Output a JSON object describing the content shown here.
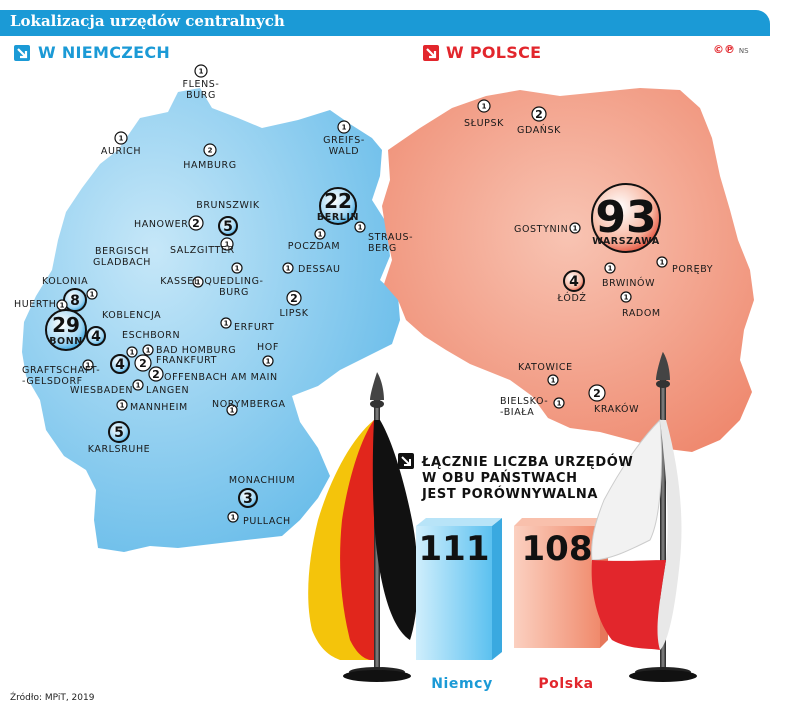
{
  "header": {
    "title": "Lokalizacja urzędów centralnych"
  },
  "sections": {
    "germany": "w Niemczech",
    "poland": "w Polsce"
  },
  "copyright": {
    "mark": "©℗",
    "author": "NS"
  },
  "source": "Źródło: MPiT, 2019",
  "summary": {
    "text_lines": [
      "Łącznie liczba urzędów",
      "w obu państwach",
      "jest porównywalna"
    ]
  },
  "totals": [
    {
      "country": "Niemcy",
      "value": "111",
      "color": "#1b9ad6"
    },
    {
      "country": "Polska",
      "value": "108",
      "color": "#e2262c"
    }
  ],
  "colors": {
    "germany_fill": "#8fcdf0",
    "poland_fill": "#f3a38a",
    "accent_blue": "#1b9ad6",
    "accent_red": "#e2262c"
  },
  "cities_germany": [
    {
      "id": "flensburg",
      "label_lines": [
        "Flens-",
        "burg"
      ],
      "count": "1"
    },
    {
      "id": "aurich",
      "label_lines": [
        "Aurich"
      ],
      "count": "1"
    },
    {
      "id": "hamburg",
      "label_lines": [
        "Hamburg"
      ],
      "count": "2"
    },
    {
      "id": "greifswald",
      "label_lines": [
        "Greifs-",
        "wald"
      ],
      "count": "1"
    },
    {
      "id": "brunszwik",
      "label_lines": [
        "Brunszwik"
      ],
      "count": "5"
    },
    {
      "id": "hanower",
      "label_lines": [
        "Hanower"
      ],
      "count": "2"
    },
    {
      "id": "salzgitter",
      "label_lines": [
        "Salzgitter"
      ],
      "count": "1"
    },
    {
      "id": "berlin",
      "label_lines": [
        "Berlin"
      ],
      "count": "22"
    },
    {
      "id": "poczdam",
      "label_lines": [
        "Poczdam"
      ],
      "count": "1"
    },
    {
      "id": "strausberg",
      "label_lines": [
        "Straus-",
        "berg"
      ],
      "count": "1"
    },
    {
      "id": "dessau",
      "label_lines": [
        "Dessau"
      ],
      "count": "1"
    },
    {
      "id": "quedlinburg",
      "label_lines": [
        "Quedling-",
        "burg"
      ],
      "count": "1"
    },
    {
      "id": "kassel",
      "label_lines": [
        "Kassel"
      ],
      "count": "1"
    },
    {
      "id": "bergisch-gladbach",
      "label_lines": [
        "Bergisch",
        "Gladbach"
      ],
      "count": "1"
    },
    {
      "id": "kolonia",
      "label_lines": [
        "Kolonia"
      ],
      "count": "8"
    },
    {
      "id": "huerth",
      "label_lines": [
        "Huerth"
      ],
      "count": "1"
    },
    {
      "id": "koblencja",
      "label_lines": [
        "Koblencja"
      ],
      "count": "4"
    },
    {
      "id": "bonn",
      "label_lines": [
        "Bonn"
      ],
      "count": "29"
    },
    {
      "id": "lipsk",
      "label_lines": [
        "Lipsk"
      ],
      "count": "2"
    },
    {
      "id": "erfurt",
      "label_lines": [
        "Erfurt"
      ],
      "count": "1"
    },
    {
      "id": "eschborn",
      "label_lines": [
        "Eschborn"
      ],
      "count": "1"
    },
    {
      "id": "bad-homburg",
      "label_lines": [
        "Bad Homburg"
      ],
      "count": "1"
    },
    {
      "id": "frankfurt",
      "label_lines": [
        "Frankfurt"
      ],
      "count": "2"
    },
    {
      "id": "wiesbaden",
      "label_lines": [
        "Wiesbaden"
      ],
      "count": "4"
    },
    {
      "id": "offenbach",
      "label_lines": [
        "Offenbach am Main"
      ],
      "count": "2"
    },
    {
      "id": "langen",
      "label_lines": [
        "Langen"
      ],
      "count": "1"
    },
    {
      "id": "graftschaft",
      "label_lines": [
        "Graftschaft-",
        "-Gelsdorf"
      ],
      "count": "1"
    },
    {
      "id": "hof",
      "label_lines": [
        "Hof"
      ],
      "count": "1"
    },
    {
      "id": "mannheim",
      "label_lines": [
        "Mannheim"
      ],
      "count": "1"
    },
    {
      "id": "norymberga",
      "label_lines": [
        "Norymberga"
      ],
      "count": "1"
    },
    {
      "id": "karlsruhe",
      "label_lines": [
        "Karlsruhe"
      ],
      "count": "5"
    },
    {
      "id": "monachium",
      "label_lines": [
        "Monachium"
      ],
      "count": "3"
    },
    {
      "id": "pullach",
      "label_lines": [
        "Pullach"
      ],
      "count": "1"
    }
  ],
  "cities_poland": [
    {
      "id": "slupsk",
      "label_lines": [
        "Słupsk"
      ],
      "count": "1"
    },
    {
      "id": "gdansk",
      "label_lines": [
        "Gdańsk"
      ],
      "count": "2"
    },
    {
      "id": "gostynin",
      "label_lines": [
        "Gostynin"
      ],
      "count": "1"
    },
    {
      "id": "warszawa",
      "label_lines": [
        "Warszawa"
      ],
      "count": "93"
    },
    {
      "id": "poreby",
      "label_lines": [
        "Poręby"
      ],
      "count": "1"
    },
    {
      "id": "brwinow",
      "label_lines": [
        "Brwinów"
      ],
      "count": "1"
    },
    {
      "id": "lodz",
      "label_lines": [
        "Łódź"
      ],
      "count": "4"
    },
    {
      "id": "radom",
      "label_lines": [
        "Radom"
      ],
      "count": "1"
    },
    {
      "id": "katowice",
      "label_lines": [
        "Katowice"
      ],
      "count": "1"
    },
    {
      "id": "bielsko-biala",
      "label_lines": [
        "Bielsko-",
        "-Biała"
      ],
      "count": "1"
    },
    {
      "id": "krakow",
      "label_lines": [
        "Kraków"
      ],
      "count": "2"
    }
  ]
}
